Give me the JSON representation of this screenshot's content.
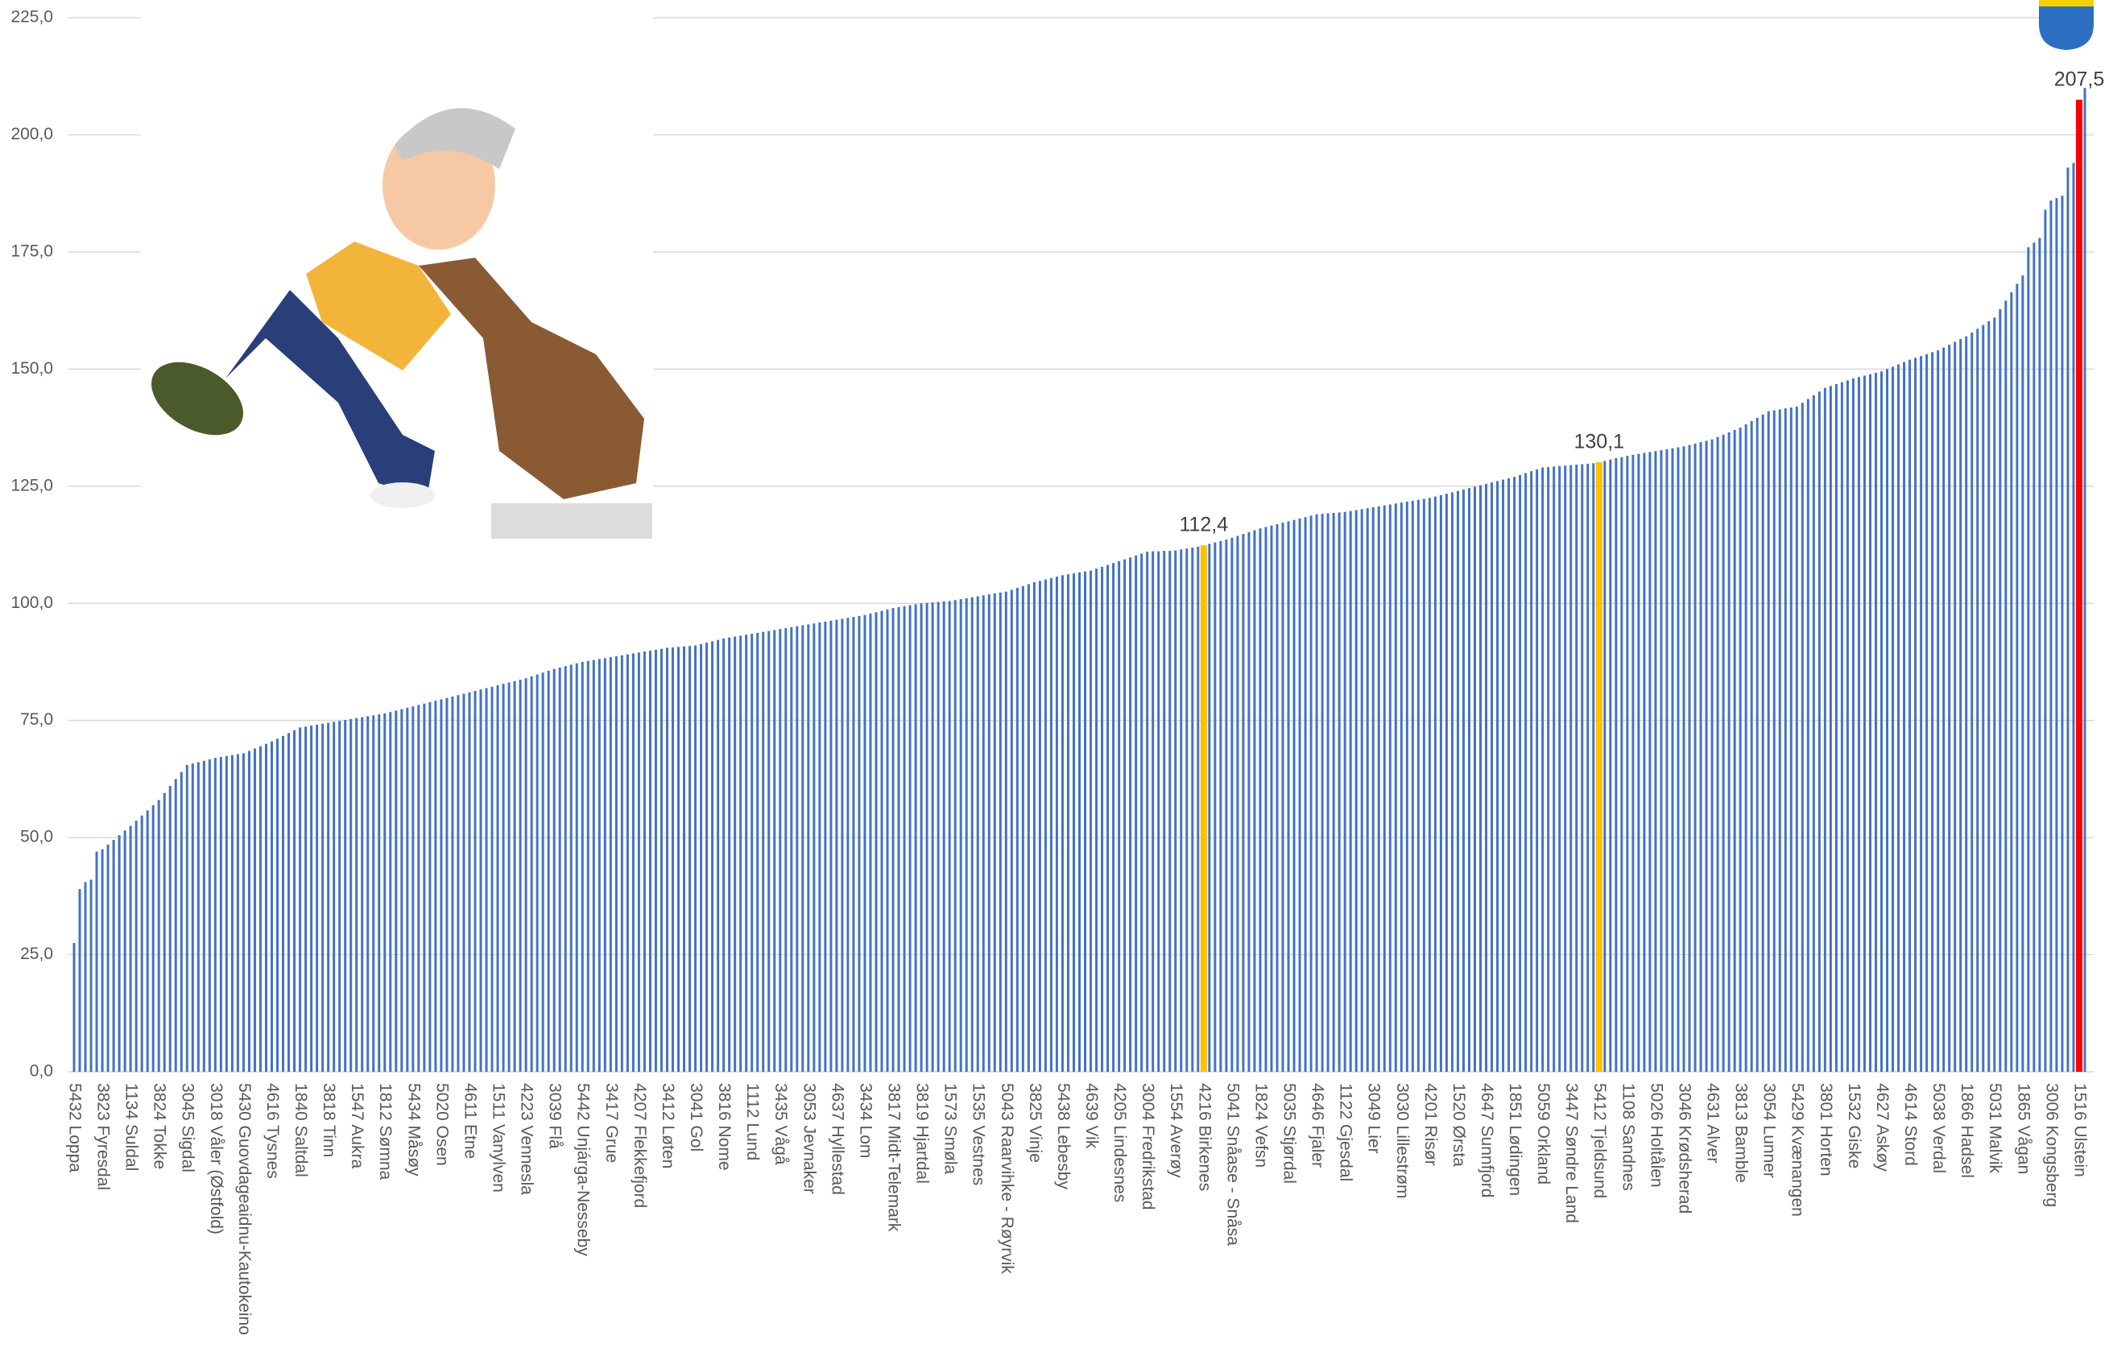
{
  "chart_data": {
    "type": "bar",
    "color": "#4472c4",
    "grid": true,
    "ylim": [
      0,
      225
    ],
    "yticks": [
      {
        "value": 0,
        "label": "0,0"
      },
      {
        "value": 25,
        "label": "25,0"
      },
      {
        "value": 50,
        "label": "50,0"
      },
      {
        "value": 75,
        "label": "75,0"
      },
      {
        "value": 100,
        "label": "100,0"
      },
      {
        "value": 125,
        "label": "125,0"
      },
      {
        "value": 150,
        "label": "150,0"
      },
      {
        "value": 175,
        "label": "175,0"
      },
      {
        "value": 200,
        "label": "200,0"
      },
      {
        "value": 225,
        "label": "225,0"
      }
    ],
    "highlights": [
      {
        "index": 200,
        "color": "#ffc000"
      },
      {
        "index": 270,
        "color": "#ffc000"
      },
      {
        "index": 355,
        "color": "#ff0000"
      }
    ],
    "value_labels": {
      "200": "112,4",
      "270": "130,1",
      "355": "207,5"
    },
    "categories": [
      "5432 Loppa",
      null,
      null,
      null,
      null,
      "3823 Fyresdal",
      null,
      null,
      null,
      null,
      "1134 Suldal",
      null,
      null,
      null,
      null,
      "3824 Tokke",
      null,
      null,
      null,
      null,
      "3045 Sigdal",
      null,
      null,
      null,
      null,
      "3018 Våler (Østfold)",
      null,
      null,
      null,
      null,
      "5430 Guovdageaidnu-Kautokeino",
      null,
      null,
      null,
      null,
      "4616 Tysnes",
      null,
      null,
      null,
      null,
      "1840 Saltdal",
      null,
      null,
      null,
      null,
      "3818 Tinn",
      null,
      null,
      null,
      null,
      "1547 Aukra",
      null,
      null,
      null,
      null,
      "1812 Sømna",
      null,
      null,
      null,
      null,
      "5434 Måsøy",
      null,
      null,
      null,
      null,
      "5020 Osen",
      null,
      null,
      null,
      null,
      "4611 Etne",
      null,
      null,
      null,
      null,
      "1511 Vanylven",
      null,
      null,
      null,
      null,
      "4223 Vennesla",
      null,
      null,
      null,
      null,
      "3039 Flå",
      null,
      null,
      null,
      null,
      "5442 Unjárga-Nesseby",
      null,
      null,
      null,
      null,
      "3417 Grue",
      null,
      null,
      null,
      null,
      "4207 Flekkefjord",
      null,
      null,
      null,
      null,
      "3412 Løten",
      null,
      null,
      null,
      null,
      "3041 Gol",
      null,
      null,
      null,
      null,
      "3816 Nome",
      null,
      null,
      null,
      null,
      "1112 Lund",
      null,
      null,
      null,
      null,
      "3435 Vågå",
      null,
      null,
      null,
      null,
      "3053 Jevnaker",
      null,
      null,
      null,
      null,
      "4637 Hyllestad",
      null,
      null,
      null,
      null,
      "3434 Lom",
      null,
      null,
      null,
      null,
      "3817 Midt-Telemark",
      null,
      null,
      null,
      null,
      "3819 Hjartdal",
      null,
      null,
      null,
      null,
      "1573 Smøla",
      null,
      null,
      null,
      null,
      "1535 Vestnes",
      null,
      null,
      null,
      null,
      "5043 Raarvihke - Røyrvik",
      null,
      null,
      null,
      null,
      "3825 Vinje",
      null,
      null,
      null,
      null,
      "5438 Lebesby",
      null,
      null,
      null,
      null,
      "4639 Vik",
      null,
      null,
      null,
      null,
      "4205 Lindesnes",
      null,
      null,
      null,
      null,
      "3004 Fredrikstad",
      null,
      null,
      null,
      null,
      "1554 Averøy",
      null,
      null,
      null,
      null,
      "4216 Birkenes",
      null,
      null,
      null,
      null,
      "5041 Snåase - Snåsa",
      null,
      null,
      null,
      null,
      "1824 Vefsn",
      null,
      null,
      null,
      null,
      "5035 Stjørdal",
      null,
      null,
      null,
      null,
      "4646 Fjaler",
      null,
      null,
      null,
      null,
      "1122 Gjesdal",
      null,
      null,
      null,
      null,
      "3049 Lier",
      null,
      null,
      null,
      null,
      "3030 Lillestrøm",
      null,
      null,
      null,
      null,
      "4201 Risør",
      null,
      null,
      null,
      null,
      "1520 Ørsta",
      null,
      null,
      null,
      null,
      "4647 Sunnfjord",
      null,
      null,
      null,
      null,
      "1851 Lødingen",
      null,
      null,
      null,
      null,
      "5059 Orkland",
      null,
      null,
      null,
      null,
      "3447 Søndre Land",
      null,
      null,
      null,
      null,
      "5412 Tjeldsund",
      null,
      null,
      null,
      null,
      "1108 Sandnes",
      null,
      null,
      null,
      null,
      "5026 Holtålen",
      null,
      null,
      null,
      null,
      "3046 Krødsherad",
      null,
      null,
      null,
      null,
      "4631 Alver",
      null,
      null,
      null,
      null,
      "3813 Bamble",
      null,
      null,
      null,
      null,
      "3054 Lunner",
      null,
      null,
      null,
      null,
      "5429 Kvænangen",
      null,
      null,
      null,
      null,
      "3801 Horten",
      null,
      null,
      null,
      null,
      "1532 Giske",
      null,
      null,
      null,
      null,
      "4627 Askøy",
      null,
      null,
      null,
      null,
      "4614 Stord",
      null,
      null,
      null,
      null,
      "5038 Verdal",
      null,
      null,
      null,
      null,
      "1866 Hadsel",
      null,
      null,
      null,
      null,
      "5031 Malvik",
      null,
      null,
      null,
      null,
      "1865 Vågan",
      null,
      null,
      null,
      null,
      "3006 Kongsberg",
      null,
      null,
      null,
      null,
      "1516 Ulstein",
      null
    ],
    "values": [
      27.5,
      39,
      40.5,
      41,
      47,
      47.5,
      48.5,
      49.5,
      50.5,
      51.5,
      52.5,
      53.6,
      54.7,
      55.8,
      56.9,
      58,
      59.5,
      61,
      62.5,
      64,
      65.5,
      65.8,
      66.1,
      66.4,
      66.7,
      67,
      67.2,
      67.4,
      67.6,
      67.8,
      68,
      68.5,
      69,
      69.5,
      70,
      70.5,
      71.1,
      71.7,
      72.3,
      72.9,
      73.5,
      73.7,
      73.9,
      74.1,
      74.3,
      74.5,
      74.7,
      74.9,
      75.1,
      75.3,
      75.5,
      75.7,
      75.9,
      76.1,
      76.3,
      76.5,
      76.8,
      77.1,
      77.4,
      77.7,
      78,
      78.3,
      78.6,
      78.9,
      79.2,
      79.5,
      79.8,
      80.1,
      80.4,
      80.7,
      81,
      81.3,
      81.6,
      81.9,
      82.2,
      82.5,
      82.8,
      83.1,
      83.4,
      83.7,
      84,
      84.4,
      84.8,
      85.2,
      85.6,
      86,
      86.3,
      86.6,
      86.9,
      87.2,
      87.5,
      87.7,
      87.9,
      88.1,
      88.3,
      88.5,
      88.7,
      88.9,
      89.1,
      89.3,
      89.5,
      89.7,
      89.9,
      90.1,
      90.3,
      90.5,
      90.6,
      90.7,
      90.8,
      90.9,
      91,
      91.3,
      91.6,
      91.9,
      92.2,
      92.5,
      92.7,
      92.9,
      93.1,
      93.3,
      93.5,
      93.7,
      93.9,
      94.1,
      94.3,
      94.5,
      94.7,
      94.9,
      95.1,
      95.3,
      95.5,
      95.7,
      95.9,
      96.1,
      96.3,
      96.5,
      96.7,
      96.9,
      97.1,
      97.3,
      97.5,
      97.8,
      98.1,
      98.4,
      98.7,
      99,
      99.2,
      99.4,
      99.6,
      99.8,
      100,
      100.1,
      100.2,
      100.3,
      100.4,
      100.5,
      100.7,
      100.9,
      101.1,
      101.3,
      101.5,
      101.7,
      101.9,
      102.1,
      102.3,
      102.5,
      102.9,
      103.3,
      103.7,
      104.1,
      104.5,
      104.8,
      105.1,
      105.4,
      105.7,
      106,
      106.2,
      106.4,
      106.6,
      106.8,
      107,
      107.4,
      107.8,
      108.2,
      108.6,
      109,
      109.4,
      109.8,
      110.2,
      110.6,
      111,
      111.1,
      111.1,
      111.2,
      111.2,
      111.3,
      111.5,
      111.7,
      111.9,
      112.1,
      112.4,
      112.7,
      113,
      113.3,
      113.6,
      114,
      114.4,
      114.8,
      115.2,
      115.6,
      116,
      116.3,
      116.6,
      116.9,
      117.2,
      117.5,
      117.8,
      118.1,
      118.4,
      118.7,
      119,
      119.1,
      119.2,
      119.3,
      119.4,
      119.5,
      119.7,
      119.9,
      120.1,
      120.3,
      120.5,
      120.7,
      120.9,
      121.1,
      121.3,
      121.5,
      121.7,
      121.9,
      122.1,
      122.3,
      122.5,
      122.8,
      123.1,
      123.4,
      123.7,
      124,
      124.3,
      124.6,
      124.9,
      125.2,
      125.5,
      125.8,
      126.1,
      126.4,
      126.7,
      127,
      127.4,
      127.8,
      128.2,
      128.6,
      129,
      129.1,
      129.2,
      129.3,
      129.4,
      129.5,
      129.6,
      129.7,
      129.8,
      129.9,
      130.1,
      130.4,
      130.7,
      131,
      131.2,
      131.5,
      131.7,
      131.9,
      132.1,
      132.3,
      132.5,
      132.7,
      132.9,
      133.1,
      133.3,
      133.5,
      133.8,
      134.1,
      134.4,
      134.7,
      135,
      135.5,
      136,
      136.5,
      137,
      137.5,
      138.2,
      138.9,
      139.6,
      140.3,
      141,
      141.2,
      141.4,
      141.6,
      141.8,
      142,
      142.8,
      143.6,
      144.4,
      145.2,
      146,
      146.4,
      146.8,
      147.2,
      147.6,
      148,
      148.3,
      148.6,
      148.9,
      149.2,
      149.5,
      150,
      150.5,
      151,
      151.5,
      152,
      152.4,
      152.8,
      153.2,
      153.6,
      154,
      154.6,
      155.2,
      155.8,
      156.4,
      157,
      157.8,
      158.6,
      159.4,
      160.2,
      161,
      162.8,
      164.6,
      166.4,
      168.2,
      170,
      176,
      177,
      178,
      184,
      186,
      186.5,
      187,
      193,
      194,
      207.5,
      210
    ]
  }
}
